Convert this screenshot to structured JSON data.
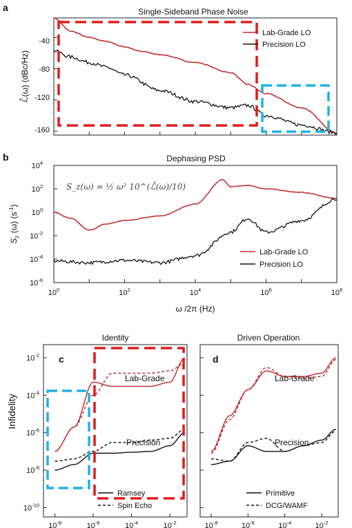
{
  "colors": {
    "red": "#c1262a",
    "black": "#111111",
    "box_red": "#e01b1b",
    "box_blue": "#21b1e6"
  },
  "panels": {
    "a": {
      "label": "a",
      "title": "Single-Sideband Phase Noise",
      "ylabel": "ℒ̃(ω) (dBc/Hz)",
      "yticks": [
        "-40",
        "-80",
        "-120",
        "-160"
      ],
      "legend": [
        "Lab-Grade LO",
        "Precision LO"
      ]
    },
    "b": {
      "label": "b",
      "title": "Dephasing PSD",
      "ylabel_main": "S",
      "ylabel_sub": "z",
      "ylabel_rest": " (ω) (s",
      "ylabel_sup": "-1",
      "ylabel_close": ")",
      "formula": "S_z(ω) = ½ ω² 10^(ℒ̃(ω)/10)",
      "yticks_exp": [
        "4",
        "2",
        "0",
        "-2",
        "-4",
        "-6"
      ],
      "xticks_exp": [
        "0",
        "2",
        "4",
        "6",
        "8"
      ],
      "xlabel": "ω /2π  (Hz)",
      "legend": [
        "Lab-Grade LO",
        "Precision LO"
      ]
    },
    "c": {
      "label": "c",
      "title": "Identity",
      "annot_top": "Lab-Grade",
      "annot_bottom": "Precision",
      "legend": [
        "Ramsey",
        "Spin Echo"
      ],
      "yticks_exp": [
        "-2",
        "-4",
        "-6",
        "-8",
        "-10"
      ],
      "xticks_exp": [
        "-8",
        "-6",
        "-4",
        "-2"
      ]
    },
    "d": {
      "label": "d",
      "title": "Driven Operation",
      "annot_top": "Lab-Grade",
      "annot_bottom": "Precision",
      "legend": [
        "Primitive",
        "DCG/WAMF"
      ],
      "xticks_exp": [
        "-8",
        "-6",
        "-4",
        "-2"
      ]
    },
    "shared": {
      "ylabel_cd": "Infidelity",
      "tick_base": "10"
    }
  },
  "chart_data": [
    {
      "type": "line",
      "title": "Single-Sideband Phase Noise",
      "ylabel": "ℒ̃(ω) (dBc/Hz)",
      "ylim": [
        -165,
        -15
      ],
      "x_scale": "log",
      "xlim": [
        1,
        100000000
      ],
      "series": [
        {
          "name": "Lab-Grade LO",
          "x": [
            1,
            3,
            10,
            30,
            100,
            300,
            1000,
            10000,
            100000,
            300000,
            1000000,
            10000000,
            100000000
          ],
          "y": [
            -15,
            -32,
            -40,
            -45,
            -52,
            -58,
            -62,
            -72,
            -85,
            -100,
            -112,
            -130,
            -162
          ]
        },
        {
          "name": "Precision LO",
          "x": [
            1,
            3,
            10,
            30,
            100,
            1000,
            10000,
            100000,
            300000,
            1000000,
            10000000,
            100000000
          ],
          "y": [
            -57,
            -65,
            -72,
            -78,
            -88,
            -108,
            -122,
            -130,
            -127,
            -140,
            -152,
            -162
          ]
        }
      ]
    },
    {
      "type": "line",
      "title": "Dephasing PSD",
      "xlabel": "ω /2π  (Hz)",
      "x_scale": "log",
      "y_scale": "log",
      "xlim": [
        1,
        100000000
      ],
      "ylim": [
        1e-06,
        10000
      ],
      "series": [
        {
          "name": "Lab-Grade LO",
          "x": [
            1,
            3,
            10,
            30,
            100,
            1000,
            10000,
            60000,
            100000,
            300000,
            1000000,
            10000000,
            100000000
          ],
          "y": [
            1,
            0.3,
            0.03,
            0.1,
            0.2,
            0.5,
            5,
            600,
            150,
            200,
            100,
            50,
            15
          ]
        },
        {
          "name": "Precision LO",
          "x": [
            1,
            10,
            100,
            1000,
            10000,
            100000,
            300000,
            1000000,
            10000000,
            100000000
          ],
          "y": [
            7e-05,
            5e-05,
            8e-05,
            5e-05,
            0.0002,
            0.02,
            0.3,
            0.02,
            0.2,
            15
          ]
        }
      ]
    },
    {
      "type": "line",
      "title": "Identity",
      "ylabel": "Infidelity",
      "x_scale": "log",
      "y_scale": "log",
      "xlim": [
        1e-08,
        0.1
      ],
      "ylim": [
        1e-10,
        0.1
      ],
      "series": [
        {
          "name": "Lab-Grade Ramsey",
          "x": [
            1e-08,
            1e-07,
            1e-06,
            1e-05,
            0.0001,
            0.001,
            0.01,
            0.06
          ],
          "y": [
            1e-07,
            2e-06,
            0.0005,
            0.0003,
            0.0003,
            0.0003,
            0.0005,
            0.01
          ]
        },
        {
          "name": "Lab-Grade Spin Echo",
          "x": [
            1e-08,
            1e-07,
            1e-06,
            1e-05,
            0.0001,
            0.001,
            0.01,
            0.06
          ],
          "y": [
            1e-07,
            2e-06,
            0.0001,
            0.0015,
            0.0015,
            0.0015,
            0.002,
            0.005
          ]
        },
        {
          "name": "Precision Ramsey",
          "x": [
            1e-08,
            1e-07,
            1e-06,
            1e-05,
            0.0001,
            0.001,
            0.01,
            0.06
          ],
          "y": [
            1e-08,
            2e-08,
            8e-08,
            8e-08,
            9e-08,
            1e-07,
            2e-07,
            1e-06
          ]
        },
        {
          "name": "Precision Spin Echo",
          "x": [
            1e-08,
            1e-07,
            1e-06,
            1e-05,
            0.0001,
            0.001,
            0.01,
            0.06
          ],
          "y": [
            3e-08,
            4e-08,
            1e-07,
            3e-07,
            3e-07,
            4e-07,
            5e-07,
            1.5e-06
          ]
        }
      ]
    },
    {
      "type": "line",
      "title": "Driven Operation",
      "x_scale": "log",
      "y_scale": "log",
      "xlim": [
        1e-08,
        0.1
      ],
      "ylim": [
        1e-10,
        0.1
      ],
      "series": [
        {
          "name": "Lab-Grade Primitive",
          "x": [
            1e-08,
            1e-07,
            1e-06,
            1e-05,
            0.0001,
            0.001,
            0.01,
            0.06
          ],
          "y": [
            1e-07,
            8e-06,
            0.0002,
            0.002,
            0.001,
            0.001,
            0.0015,
            0.01
          ]
        },
        {
          "name": "Lab-Grade DCG/WAMF",
          "x": [
            1e-08,
            1e-07,
            1e-06,
            1e-05,
            0.0001,
            0.001,
            0.01,
            0.06
          ],
          "y": [
            8e-08,
            5e-06,
            0.0002,
            0.003,
            0.001,
            0.0008,
            0.001,
            0.008
          ]
        },
        {
          "name": "Precision Primitive",
          "x": [
            1e-08,
            1e-07,
            1e-06,
            1e-05,
            0.0001,
            0.001,
            0.01,
            0.06
          ],
          "y": [
            2e-08,
            3e-08,
            2e-07,
            1e-07,
            1e-07,
            2e-07,
            4e-07,
            1.5e-06
          ]
        },
        {
          "name": "Precision DCG/WAMF",
          "x": [
            1e-08,
            1e-07,
            1e-06,
            1e-05,
            0.0001,
            0.001,
            0.01,
            0.06
          ],
          "y": [
            4e-08,
            3e-08,
            3e-07,
            5e-07,
            1e-07,
            2e-07,
            3e-07,
            1.2e-06
          ]
        }
      ]
    }
  ]
}
